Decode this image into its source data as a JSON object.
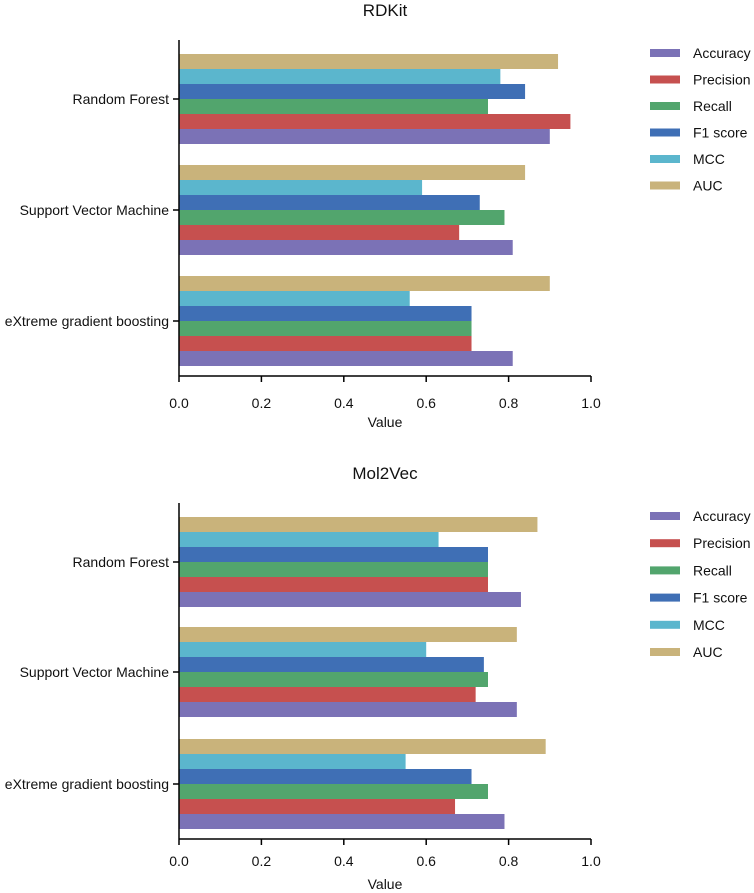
{
  "chart_data": [
    {
      "type": "bar",
      "orientation": "horizontal",
      "title": "RDKit",
      "xlabel": "Value",
      "ylabel": "",
      "xlim": [
        0,
        1.0
      ],
      "xticks": [
        "0.0",
        "0.2",
        "0.4",
        "0.6",
        "0.8",
        "1.0"
      ],
      "categories": [
        "Random Forest",
        "Support Vector Machine",
        "eXtreme gradient boosting"
      ],
      "legend_position": "right",
      "series": [
        {
          "name": "Accuracy",
          "color": "#7b72b6",
          "values": [
            0.9,
            0.81,
            0.81
          ]
        },
        {
          "name": "Precision",
          "color": "#c6504f",
          "values": [
            0.95,
            0.68,
            0.71
          ]
        },
        {
          "name": "Recall",
          "color": "#52a56d",
          "values": [
            0.75,
            0.79,
            0.71
          ]
        },
        {
          "name": "F1 score",
          "color": "#3f6fb5",
          "values": [
            0.84,
            0.73,
            0.71
          ]
        },
        {
          "name": "MCC",
          "color": "#5bb6cd",
          "values": [
            0.78,
            0.59,
            0.56
          ]
        },
        {
          "name": "AUC",
          "color": "#c9b37b",
          "values": [
            0.92,
            0.84,
            0.9
          ]
        }
      ]
    },
    {
      "type": "bar",
      "orientation": "horizontal",
      "title": "Mol2Vec",
      "xlabel": "Value",
      "ylabel": "",
      "xlim": [
        0,
        1.0
      ],
      "xticks": [
        "0.0",
        "0.2",
        "0.4",
        "0.6",
        "0.8",
        "1.0"
      ],
      "categories": [
        "Random Forest",
        "Support Vector Machine",
        "eXtreme gradient boosting"
      ],
      "legend_position": "right",
      "series": [
        {
          "name": "Accuracy",
          "color": "#7b72b6",
          "values": [
            0.83,
            0.82,
            0.79
          ]
        },
        {
          "name": "Precision",
          "color": "#c6504f",
          "values": [
            0.75,
            0.72,
            0.67
          ]
        },
        {
          "name": "Recall",
          "color": "#52a56d",
          "values": [
            0.75,
            0.75,
            0.75
          ]
        },
        {
          "name": "F1 score",
          "color": "#3f6fb5",
          "values": [
            0.75,
            0.74,
            0.71
          ]
        },
        {
          "name": "MCC",
          "color": "#5bb6cd",
          "values": [
            0.63,
            0.6,
            0.55
          ]
        },
        {
          "name": "AUC",
          "color": "#c9b37b",
          "values": [
            0.87,
            0.82,
            0.89
          ]
        }
      ]
    }
  ]
}
